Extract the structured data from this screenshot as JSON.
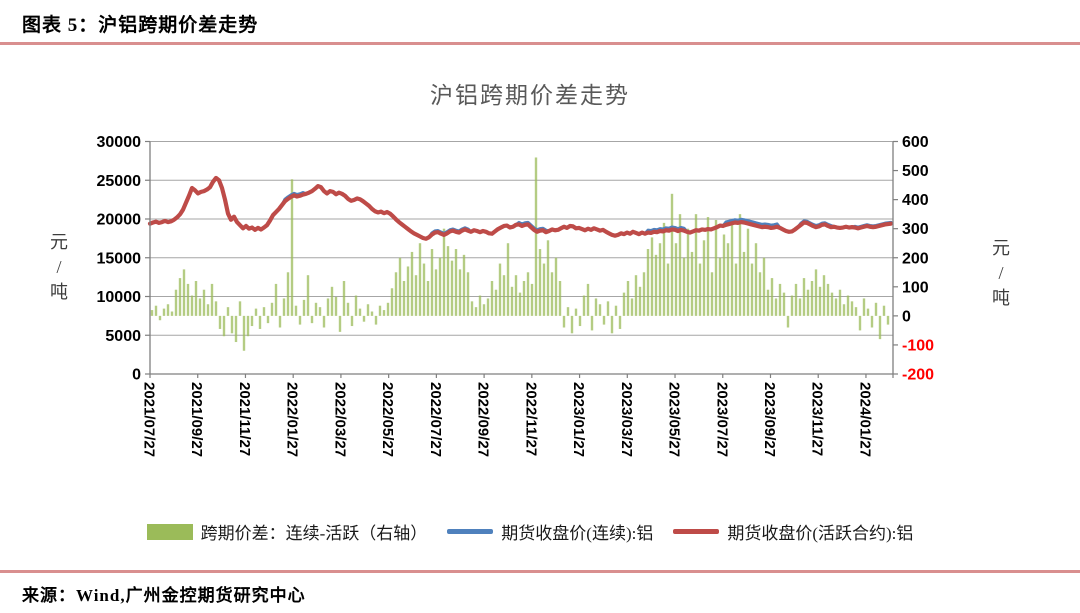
{
  "header": {
    "title": "图表 5：沪铝跨期价差走势"
  },
  "footer": {
    "source": "来源：Wind,广州金控期货研究中心"
  },
  "colors": {
    "separator": "#d98f8f",
    "grid": "#a6a6a6",
    "axis": "#7f7f7f",
    "title": "#595959",
    "bar_green": "#9bbb59",
    "line_blue": "#4f81bd",
    "line_red": "#be4b48",
    "negative_tick": "#ff0000"
  },
  "chart_data": {
    "type": "composite",
    "title": "沪铝跨期价差走势",
    "left_axis": {
      "unit": "元\n/\n吨",
      "ticks": [
        30000,
        25000,
        20000,
        15000,
        10000,
        5000,
        0
      ]
    },
    "right_axis": {
      "unit": "元\n/\n吨",
      "ticks": [
        600,
        500,
        400,
        300,
        200,
        100,
        0,
        -100,
        -200
      ],
      "negative_color": "#ff0000"
    },
    "x_axis": {
      "labels": [
        "2021/07/27",
        "2021/09/27",
        "2021/11/27",
        "2022/01/27",
        "2022/03/27",
        "2022/05/27",
        "2022/07/27",
        "2022/09/27",
        "2022/11/27",
        "2023/01/27",
        "2023/03/27",
        "2023/05/27",
        "2023/07/27",
        "2023/09/27",
        "2023/11/27",
        "2024/01/27"
      ]
    },
    "series": [
      {
        "name": "跨期价差：连续-活跃（右轴）",
        "type": "bar",
        "axis": "right",
        "color": "#9bbb59",
        "x0": 152,
        "dx": 4,
        "values": [
          20,
          35,
          -15,
          25,
          40,
          15,
          90,
          130,
          160,
          110,
          70,
          120,
          60,
          90,
          40,
          110,
          50,
          -45,
          -70,
          30,
          -60,
          -90,
          50,
          -120,
          -70,
          -35,
          25,
          -45,
          30,
          -25,
          45,
          110,
          -40,
          60,
          150,
          470,
          35,
          -30,
          55,
          140,
          -25,
          45,
          30,
          -40,
          60,
          100,
          65,
          -55,
          120,
          45,
          -35,
          70,
          25,
          -20,
          40,
          15,
          -30,
          35,
          20,
          45,
          95,
          150,
          200,
          120,
          170,
          220,
          140,
          250,
          180,
          120,
          230,
          160,
          200,
          300,
          240,
          190,
          230,
          160,
          210,
          150,
          50,
          30,
          70,
          40,
          60,
          120,
          90,
          180,
          140,
          250,
          100,
          140,
          80,
          120,
          150,
          110,
          545,
          230,
          180,
          260,
          150,
          200,
          120,
          -40,
          30,
          -60,
          25,
          -35,
          70,
          110,
          -50,
          60,
          40,
          -30,
          50,
          -60,
          35,
          -45,
          80,
          120,
          60,
          140,
          100,
          150,
          230,
          270,
          210,
          250,
          320,
          180,
          420,
          250,
          350,
          200,
          300,
          220,
          350,
          180,
          260,
          340,
          150,
          330,
          200,
          280,
          250,
          320,
          180,
          350,
          220,
          300,
          180,
          250,
          150,
          200,
          90,
          130,
          60,
          110,
          80,
          -40,
          70,
          110,
          60,
          130,
          90,
          120,
          160,
          100,
          140,
          110,
          80,
          60,
          90,
          40,
          70,
          50,
          30,
          -50,
          60,
          25,
          -40,
          45,
          -80,
          35,
          -30
        ]
      },
      {
        "name": "期货收盘价(连续):铝",
        "type": "line",
        "axis": "left",
        "color": "#4f81bd",
        "x0": 150,
        "dx": 3,
        "base_series": 2,
        "offset_segments": [
          [
            285,
            305,
            250
          ],
          [
            432,
            470,
            200
          ],
          [
            519,
            546,
            250
          ],
          [
            646,
            684,
            300
          ],
          [
            726,
            779,
            350
          ],
          [
            801,
            833,
            200
          ],
          [
            855,
            891,
            150
          ]
        ]
      },
      {
        "name": "期货收盘价(活跃合约):铝",
        "type": "line",
        "axis": "left",
        "color": "#be4b48",
        "x0": 150,
        "dx": 3,
        "values": [
          19400,
          19550,
          19650,
          19500,
          19600,
          19750,
          19600,
          19700,
          19900,
          20200,
          20600,
          21200,
          22100,
          23000,
          24000,
          23700,
          23300,
          23500,
          23600,
          23800,
          24100,
          24800,
          25300,
          25000,
          24000,
          22500,
          20700,
          19900,
          20300,
          19600,
          19200,
          18800,
          19100,
          18750,
          18900,
          18600,
          18850,
          18650,
          18900,
          19200,
          19800,
          20500,
          20900,
          21300,
          21800,
          22300,
          22600,
          22850,
          23050,
          22900,
          23000,
          23150,
          23250,
          23400,
          23600,
          23900,
          24250,
          24100,
          23600,
          23300,
          23600,
          23500,
          23200,
          23400,
          23250,
          23000,
          22600,
          22350,
          22450,
          22650,
          22550,
          22300,
          22000,
          21700,
          21300,
          21000,
          20850,
          20950,
          20750,
          20900,
          20700,
          20350,
          19950,
          19600,
          19300,
          19000,
          18700,
          18400,
          18150,
          17950,
          17750,
          17550,
          17450,
          17650,
          18000,
          18250,
          18300,
          18100,
          17950,
          18150,
          18400,
          18500,
          18350,
          18250,
          18500,
          18650,
          18500,
          18350,
          18550,
          18450,
          18300,
          18450,
          18350,
          18150,
          18100,
          18400,
          18700,
          18900,
          19100,
          19150,
          18900,
          19000,
          19250,
          19300,
          19100,
          19250,
          19300,
          18950,
          18600,
          18350,
          18500,
          18550,
          18300,
          18450,
          18650,
          18550,
          18600,
          18800,
          19000,
          18850,
          19100,
          19050,
          18800,
          18850,
          18700,
          18550,
          18750,
          18600,
          18800,
          18650,
          18500,
          18600,
          18350,
          18150,
          17950,
          17850,
          17950,
          18150,
          18050,
          18250,
          18100,
          18350,
          18200,
          18050,
          18250,
          18100,
          18250,
          18200,
          18350,
          18300,
          18450,
          18400,
          18550,
          18500,
          18650,
          18600,
          18450,
          18600,
          18500,
          18350,
          18250,
          18400,
          18550,
          18500,
          18650,
          18600,
          18700,
          18650,
          18800,
          18950,
          19150,
          19100,
          19250,
          19350,
          19450,
          19550,
          19500,
          19600,
          19550,
          19450,
          19350,
          19250,
          19150,
          19050,
          18950,
          19000,
          18950,
          18850,
          18900,
          19000,
          18850,
          18650,
          18450,
          18350,
          18400,
          18650,
          18950,
          19250,
          19550,
          19500,
          19300,
          19100,
          18950,
          19050,
          19250,
          19300,
          19100,
          18950,
          19000,
          18900,
          18850,
          18900,
          19000,
          18900,
          18950,
          18900,
          18800,
          18900,
          19000,
          19100,
          19000,
          18950,
          19000,
          19100,
          19200,
          19300,
          19350,
          19400
        ]
      }
    ],
    "legend": [
      {
        "label": "跨期价差：连续-活跃（右轴）",
        "marker": "bar",
        "color": "#9bbb59"
      },
      {
        "label": "期货收盘价(连续):铝",
        "marker": "line",
        "color": "#4f81bd"
      },
      {
        "label": "期货收盘价(活跃合约):铝",
        "marker": "line",
        "color": "#be4b48"
      }
    ]
  }
}
